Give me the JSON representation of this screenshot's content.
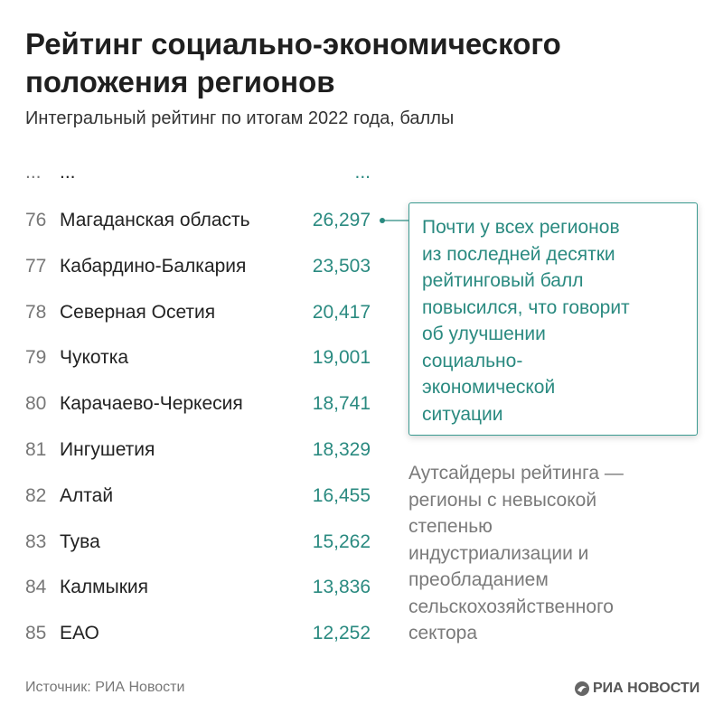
{
  "header": {
    "title_lines": [
      "Рейтинг социально-экономического",
      "положения регионов"
    ],
    "subtitle": "Интегральный рейтинг по итогам 2022 года, баллы"
  },
  "table": {
    "ellipsis": [
      "...",
      "...",
      "..."
    ],
    "rows": [
      [
        "76",
        "Магаданская область",
        "26,297"
      ],
      [
        "77",
        "Кабардино-Балкария",
        "23,503"
      ],
      [
        "78",
        "Северная Осетия",
        "20,417"
      ],
      [
        "79",
        "Чукотка",
        "19,001"
      ],
      [
        "80",
        "Карачаево-Черкесия",
        "18,741"
      ],
      [
        "81",
        "Ингушетия",
        "18,329"
      ],
      [
        "82",
        "Алтай",
        "16,455"
      ],
      [
        "83",
        "Тува",
        "15,262"
      ],
      [
        "84",
        "Калмыкия",
        "13,836"
      ],
      [
        "85",
        "ЕАО",
        "12,252"
      ]
    ]
  },
  "callout": {
    "lines": [
      "Почти у всех регионов",
      "из последней десятки",
      "рейтинговый балл",
      "повысился, что говорит",
      "об улучшении",
      "социально-",
      "экономической",
      "ситуации"
    ]
  },
  "note": {
    "lines": [
      "Аутсайдеры рейтинга —",
      "регионы с невысокой",
      "степенью",
      "индустриализации и",
      "преобладанием",
      "сельскохозяйственного",
      "сектора"
    ]
  },
  "footer": {
    "source": "Источник: РИА Новости",
    "logo": "РИА НОВОСТИ"
  }
}
